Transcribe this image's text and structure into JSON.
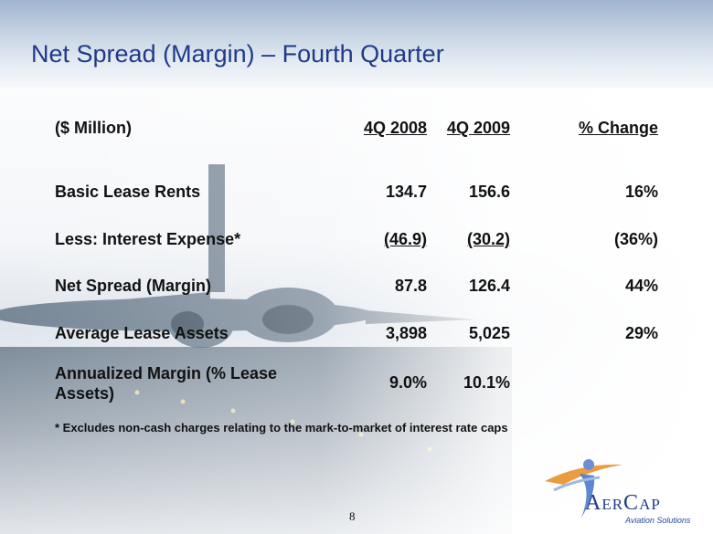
{
  "slide": {
    "title": "Net Spread (Margin) – Fourth Quarter",
    "page_number": "8",
    "footnote": "* Excludes non-cash charges relating to the mark-to-market of interest rate caps"
  },
  "table": {
    "header": {
      "label": "($ Million)",
      "col1": "4Q 2008",
      "col2": "4Q 2009",
      "col3": "% Change"
    },
    "rows": [
      {
        "label": "Basic Lease Rents",
        "col1": "134.7",
        "col2": "156.6",
        "col3": "16%"
      },
      {
        "label": "Less: Interest Expense*",
        "col1": "(46.9)",
        "col2": "(30.2)",
        "col3": "(36%)"
      },
      {
        "label": "Net Spread (Margin)",
        "col1": "87.8",
        "col2": "126.4",
        "col3": "44%"
      },
      {
        "label": "Average Lease Assets",
        "col1": "3,898",
        "col2": "5,025",
        "col3": "29%"
      },
      {
        "label_line1": "Annualized Margin (% Lease",
        "label_line2": "Assets)",
        "col1": "9.0%",
        "col2": "10.1%",
        "col3": ""
      }
    ]
  },
  "logo": {
    "brand": "AerCap",
    "tagline": "Aviation Solutions",
    "icon": "swoosh-figure-icon"
  },
  "colors": {
    "title": "#1f3a8a",
    "text": "#111111",
    "logo_blue": "#1f3a8a",
    "logo_orange": "#e8912a"
  }
}
